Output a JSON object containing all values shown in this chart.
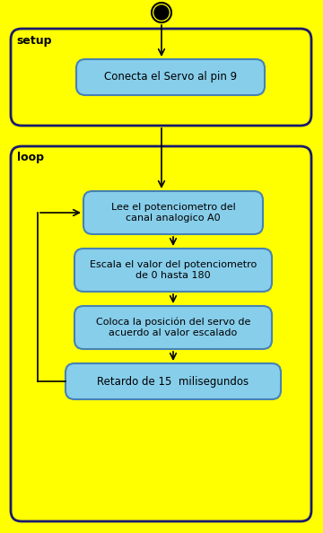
{
  "bg_color": "#FFFF00",
  "box_color": "#87CEEB",
  "box_edge_color": "#4682B4",
  "frame_edge_color": "#1a1a6e",
  "frame_bg": "#FFFF00",
  "initial_node_color": "#000000",
  "arrow_color": "#000000",
  "text_color": "#000000",
  "setup_label": "setup",
  "loop_label": "loop",
  "box1_text": "Conecta el Servo al pin 9",
  "box2_text": "Lee el potenciometro del\ncanal analogico A0",
  "box3_text": "Escala el valor del potenciometro\nde 0 hasta 180",
  "box4_text": "Coloca la posición del servo de\nacuerdo al valor escalado",
  "box5_text": "Retardo de 15  milisegundos",
  "fig_width": 3.6,
  "fig_height": 5.94,
  "dpi": 100
}
